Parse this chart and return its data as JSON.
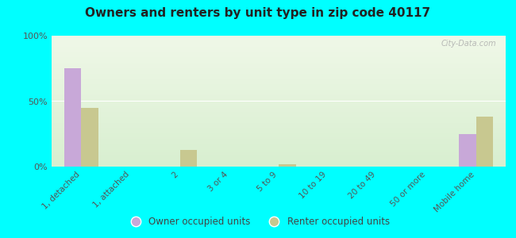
{
  "categories": [
    "1, detached",
    "1, attached",
    "2",
    "3 or 4",
    "5 to 9",
    "10 to 19",
    "20 to 49",
    "50 or more",
    "Mobile home"
  ],
  "owner_values": [
    75,
    0,
    0,
    0,
    0,
    0,
    0,
    0,
    25
  ],
  "renter_values": [
    45,
    0,
    13,
    0,
    2,
    0,
    0,
    0,
    38
  ],
  "owner_color": "#c8a8d8",
  "renter_color": "#c8c890",
  "title": "Owners and renters by unit type in zip code 40117",
  "ylabel_ticks": [
    "0%",
    "50%",
    "100%"
  ],
  "yticks": [
    0,
    50,
    100
  ],
  "ylim": [
    0,
    100
  ],
  "background_color": "#00ffff",
  "bar_width": 0.35,
  "legend_owner": "Owner occupied units",
  "legend_renter": "Renter occupied units",
  "watermark": "City-Data.com"
}
